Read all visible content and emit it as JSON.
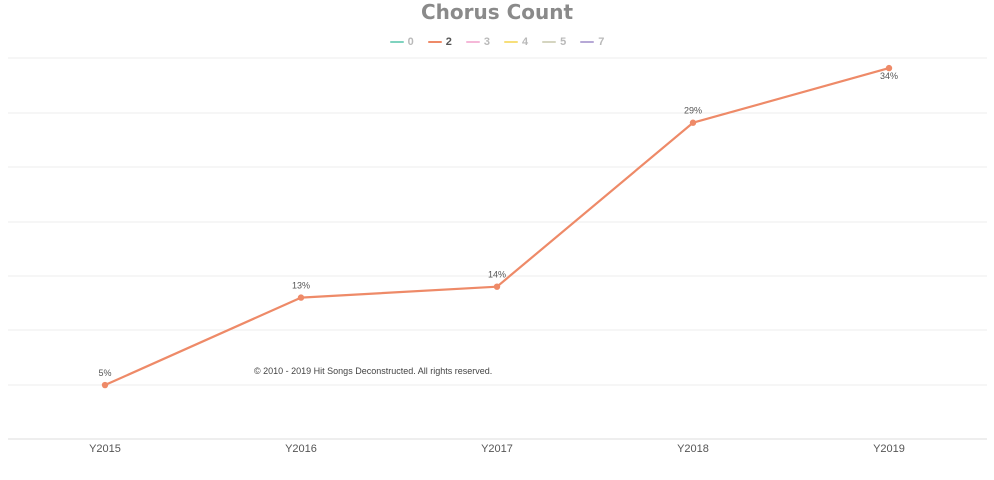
{
  "chart_data": {
    "type": "line",
    "title": "Chorus Count",
    "categories": [
      "Y2015",
      "Y2016",
      "Y2017",
      "Y2018",
      "Y2019"
    ],
    "legend": [
      {
        "name": "0",
        "color": "#7fd3bf",
        "active": false
      },
      {
        "name": "2",
        "color": "#ee8a68",
        "active": true
      },
      {
        "name": "3",
        "color": "#f5b8d8",
        "active": false
      },
      {
        "name": "4",
        "color": "#f7df7a",
        "active": false
      },
      {
        "name": "5",
        "color": "#d5d5c0",
        "active": false
      },
      {
        "name": "7",
        "color": "#b6a8d6",
        "active": false
      }
    ],
    "series": [
      {
        "name": "2",
        "color": "#ee8a68",
        "values": [
          5,
          13,
          14,
          29,
          34
        ],
        "labels": [
          "5%",
          "13%",
          "14%",
          "29%",
          "34%"
        ]
      }
    ],
    "ylim": [
      0,
      35
    ],
    "grid": true,
    "legend_position": "top"
  },
  "footer": {
    "copyright": "© 2010 - 2019 Hit Songs Deconstructed. All rights reserved."
  }
}
